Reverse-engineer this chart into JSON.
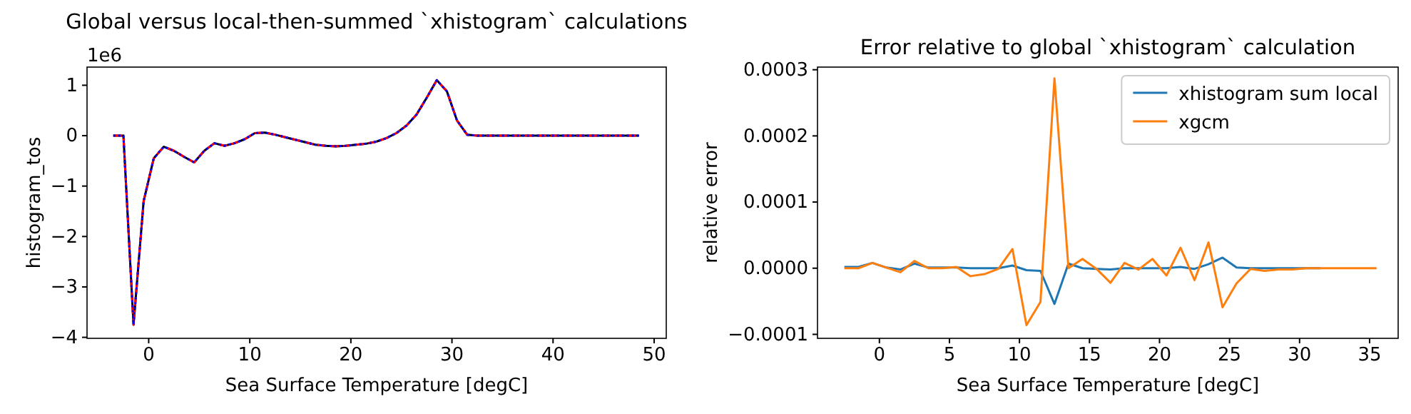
{
  "chart_data": [
    {
      "type": "line",
      "title": "Global versus local-then-summed `xhistogram` calculations",
      "xlabel": "Sea Surface Temperature [degC]",
      "ylabel": "histogram_tos",
      "annotations": [
        "1e6"
      ],
      "x": [
        -3.5,
        -2.5,
        -1.5,
        -0.5,
        0.5,
        1.5,
        2.5,
        3.5,
        4.5,
        5.5,
        6.5,
        7.5,
        8.5,
        9.5,
        10.5,
        11.5,
        12.5,
        13.5,
        14.5,
        15.5,
        16.5,
        17.5,
        18.5,
        19.5,
        20.5,
        21.5,
        22.5,
        23.5,
        24.5,
        25.5,
        26.5,
        27.5,
        28.5,
        29.5,
        30.5,
        31.5,
        32.5,
        33.5,
        34.5,
        35.5,
        36.5,
        37.5,
        38.5,
        39.5,
        40.5,
        41.5,
        42.5,
        43.5,
        44.5,
        45.5,
        46.5,
        47.5,
        48.5
      ],
      "series": [
        {
          "color": "#000000",
          "line_style": "solid",
          "values": [
            0,
            0,
            -3.75,
            -1.3,
            -0.45,
            -0.22,
            -0.3,
            -0.42,
            -0.53,
            -0.3,
            -0.15,
            -0.2,
            -0.15,
            -0.07,
            0.05,
            0.06,
            0.02,
            -0.03,
            -0.08,
            -0.13,
            -0.18,
            -0.2,
            -0.21,
            -0.2,
            -0.18,
            -0.16,
            -0.12,
            -0.05,
            0.05,
            0.2,
            0.42,
            0.75,
            1.1,
            0.88,
            0.3,
            0.02,
            0,
            0,
            0,
            0,
            0,
            0,
            0,
            0,
            0,
            0,
            0,
            0,
            0,
            0,
            0,
            0,
            0
          ]
        },
        {
          "color": "#ff0000",
          "line_style": "dashed",
          "values": [
            0,
            0,
            -3.75,
            -1.3,
            -0.45,
            -0.22,
            -0.3,
            -0.42,
            -0.53,
            -0.3,
            -0.15,
            -0.2,
            -0.15,
            -0.07,
            0.05,
            0.06,
            0.02,
            -0.03,
            -0.08,
            -0.13,
            -0.18,
            -0.2,
            -0.21,
            -0.2,
            -0.18,
            -0.16,
            -0.12,
            -0.05,
            0.05,
            0.2,
            0.42,
            0.75,
            1.1,
            0.88,
            0.3,
            0.02,
            0,
            0,
            0,
            0,
            0,
            0,
            0,
            0,
            0,
            0,
            0,
            0,
            0,
            0,
            0,
            0,
            0
          ]
        },
        {
          "color": "#0000ff",
          "line_style": "dotted",
          "values": [
            0,
            0,
            -3.75,
            -1.3,
            -0.45,
            -0.22,
            -0.3,
            -0.42,
            -0.53,
            -0.3,
            -0.15,
            -0.2,
            -0.15,
            -0.07,
            0.05,
            0.06,
            0.02,
            -0.03,
            -0.08,
            -0.13,
            -0.18,
            -0.2,
            -0.21,
            -0.2,
            -0.18,
            -0.16,
            -0.12,
            -0.05,
            0.05,
            0.2,
            0.42,
            0.75,
            1.1,
            0.88,
            0.3,
            0.02,
            0,
            0,
            0,
            0,
            0,
            0,
            0,
            0,
            0,
            0,
            0,
            0,
            0,
            0,
            0,
            0,
            0
          ]
        }
      ],
      "xlim": [
        -6.1,
        51.2
      ],
      "xticks": [
        0,
        10,
        20,
        30,
        40,
        50
      ],
      "ylim": [
        -4.02,
        1.36
      ],
      "yticks": [
        {
          "value": -4,
          "label": "−4"
        },
        {
          "value": -3,
          "label": "−3"
        },
        {
          "value": -2,
          "label": "−2"
        },
        {
          "value": -1,
          "label": "−1"
        },
        0,
        1
      ],
      "grid": false,
      "legend": false
    },
    {
      "type": "line",
      "title": "Error relative to global `xhistogram` calculation",
      "xlabel": "Sea Surface Temperature [degC]",
      "ylabel": "relative error",
      "x": [
        -2.5,
        -1.5,
        -0.5,
        0.5,
        1.5,
        2.5,
        3.5,
        4.5,
        5.5,
        6.5,
        7.5,
        8.5,
        9.5,
        10.5,
        11.5,
        12.5,
        13.5,
        14.5,
        15.5,
        16.5,
        17.5,
        18.5,
        19.5,
        20.5,
        21.5,
        22.5,
        23.5,
        24.5,
        25.5,
        26.5,
        27.5,
        28.5,
        29.5,
        30.5,
        31.5,
        32.5,
        33.5,
        34.5,
        35.5
      ],
      "series": [
        {
          "name": "xhistogram sum local",
          "color": "#1f77b4",
          "values": [
            2e-06,
            2e-06,
            8e-06,
            1e-06,
            -2e-06,
            7e-06,
            1e-06,
            1e-06,
            1e-06,
            0,
            0,
            0,
            4e-06,
            -3e-06,
            -4e-06,
            -5.4e-05,
            7e-06,
            0,
            -1e-06,
            -2e-06,
            0,
            0,
            0,
            0,
            2e-06,
            -1e-06,
            6e-06,
            1.6e-05,
            1e-06,
            0,
            0,
            0,
            0,
            0,
            0,
            null,
            null,
            null,
            null
          ]
        },
        {
          "name": "xgcm",
          "color": "#ff7f0e",
          "values": [
            0,
            0,
            8e-06,
            1e-06,
            -6e-06,
            1.1e-05,
            0,
            0,
            2e-06,
            -1.2e-05,
            -9e-06,
            -1e-06,
            2.9e-05,
            -8.6e-05,
            -5.1e-05,
            0.000287,
            0,
            1.4e-05,
            -1e-06,
            -2.2e-05,
            8e-06,
            -2e-06,
            1.4e-05,
            -1.1e-05,
            3.1e-05,
            -1.8e-05,
            3.9e-05,
            -5.9e-05,
            -2.3e-05,
            -1e-06,
            -4e-06,
            -2e-06,
            -2e-06,
            0,
            0,
            0,
            0,
            0,
            0
          ]
        }
      ],
      "xlim": [
        -4.42,
        37.04
      ],
      "xticks": [
        0,
        5,
        10,
        15,
        20,
        25,
        30,
        35
      ],
      "ylim": [
        -0.000106,
        0.000304
      ],
      "yticks": [
        {
          "value": -0.0001,
          "label": "−0.0001"
        },
        {
          "value": 0,
          "label": "0.0000"
        },
        {
          "value": 0.0001,
          "label": "0.0001"
        },
        {
          "value": 0.0002,
          "label": "0.0002"
        },
        {
          "value": 0.0003,
          "label": "0.0003"
        }
      ],
      "grid": false,
      "legend": "top right"
    }
  ]
}
